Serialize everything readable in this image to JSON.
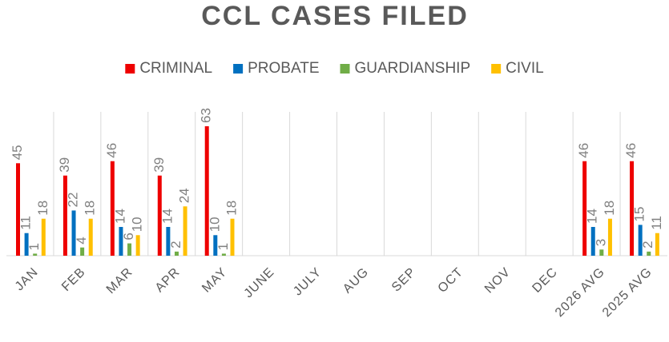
{
  "chart_data": {
    "type": "bar",
    "title": "CCL CASES FILED",
    "categories": [
      "JAN",
      "FEB",
      "MAR",
      "APR",
      "MAY",
      "JUNE",
      "JULY",
      "AUG",
      "SEP",
      "OCT",
      "NOV",
      "DEC",
      "2026 AVG",
      "2025 AVG"
    ],
    "series": [
      {
        "name": "CRIMINAL",
        "color": "#ee0000",
        "values": [
          45,
          39,
          46,
          39,
          63,
          null,
          null,
          null,
          null,
          null,
          null,
          null,
          46,
          46
        ]
      },
      {
        "name": "PROBATE",
        "color": "#0070c0",
        "values": [
          11,
          22,
          14,
          14,
          10,
          null,
          null,
          null,
          null,
          null,
          null,
          null,
          14,
          15
        ]
      },
      {
        "name": "GUARDIANSHIP",
        "color": "#70ad47",
        "values": [
          1,
          4,
          6,
          2,
          1,
          null,
          null,
          null,
          null,
          null,
          null,
          null,
          3,
          2
        ]
      },
      {
        "name": "CIVIL",
        "color": "#ffc000",
        "values": [
          18,
          18,
          10,
          24,
          18,
          null,
          null,
          null,
          null,
          null,
          null,
          null,
          18,
          11
        ]
      }
    ],
    "ylim": [
      0,
      70
    ],
    "legend": "top",
    "data_labels": true
  }
}
